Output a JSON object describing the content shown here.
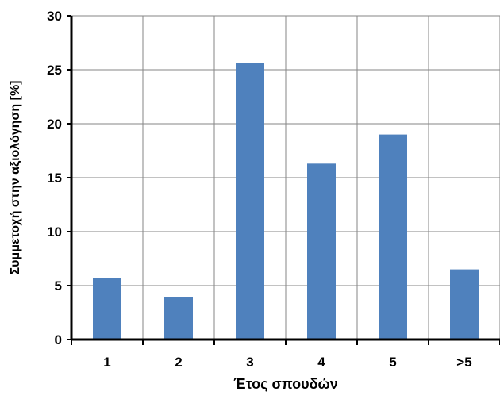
{
  "chart_data": {
    "type": "bar",
    "categories": [
      "1",
      "2",
      "3",
      "4",
      "5",
      ">5"
    ],
    "values": [
      5.7,
      3.9,
      25.6,
      16.3,
      19.0,
      6.5
    ],
    "xlabel": "Έτος σπουδών",
    "ylabel": "Συμμετοχή στην αξιολόγηση [%]",
    "ylim": [
      0,
      30
    ],
    "yticks": [
      0,
      5,
      10,
      15,
      20,
      25,
      30
    ],
    "grid": true,
    "bar_color": "#4F81BD",
    "grid_color": "#868686"
  }
}
